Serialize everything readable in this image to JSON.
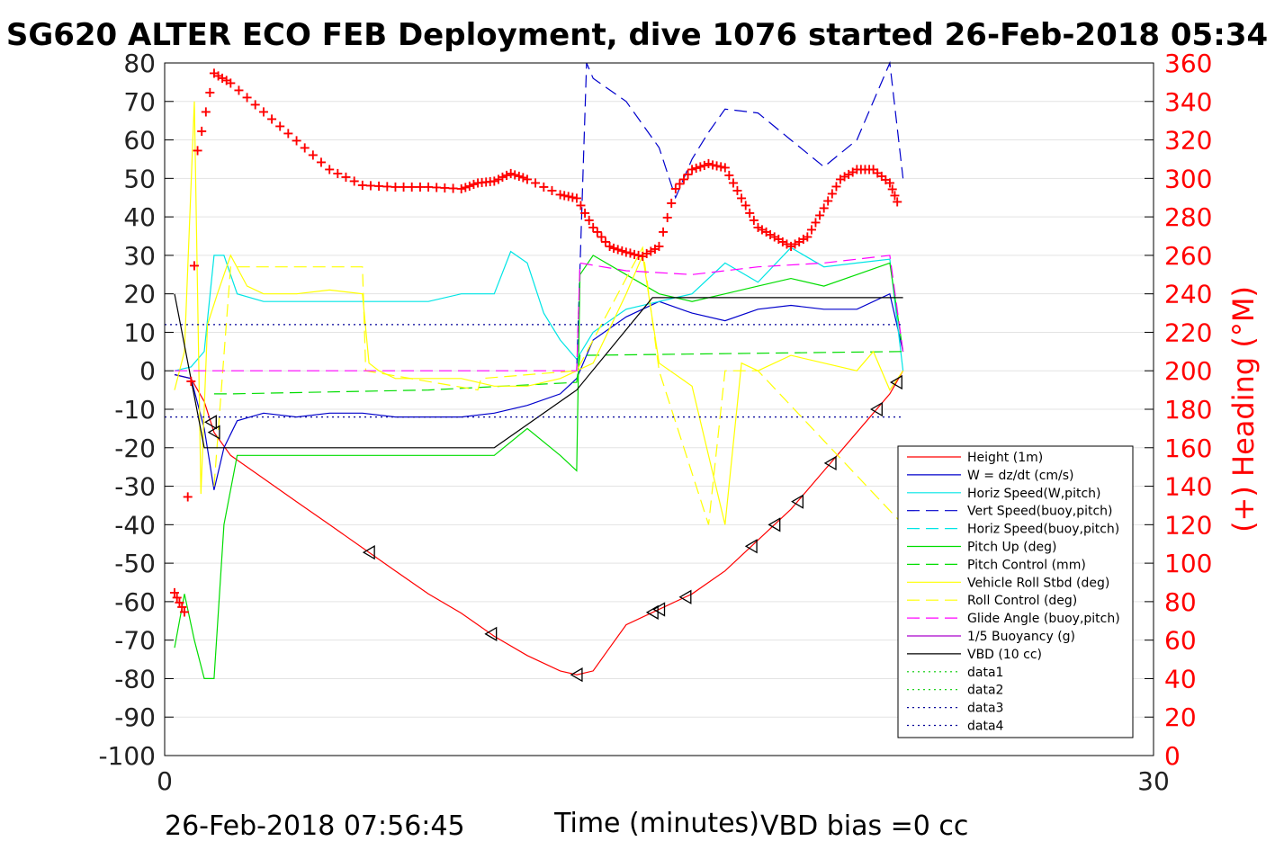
{
  "chart_data": {
    "type": "line",
    "title": "SG620 ALTER ECO FEB Deployment, dive 1076 started 26-Feb-2018 05:34",
    "xlabel": "Time (minutes)",
    "ylabel_right": "(+) Heading (°M)",
    "xlim": [
      0,
      30
    ],
    "ylim_left": [
      -100,
      80
    ],
    "ylim_right": [
      0,
      360
    ],
    "x_ticks": [
      0,
      30
    ],
    "y_ticks_left": [
      80,
      70,
      60,
      50,
      40,
      30,
      20,
      10,
      0,
      -10,
      -20,
      -30,
      -40,
      -50,
      -60,
      -70,
      -80,
      -90,
      -100
    ],
    "y_ticks_right": [
      360,
      340,
      320,
      300,
      280,
      260,
      240,
      220,
      200,
      180,
      160,
      140,
      120,
      100,
      80,
      60,
      40,
      20,
      0
    ],
    "footer_left": "26-Feb-2018 07:56:45",
    "footer_right": "VBD bias =0 cc",
    "colors": {
      "height": "#ff0000",
      "w": "#0000cc",
      "horiz": "#00e5e5",
      "pitch": "#00dd00",
      "roll": "#ffff00",
      "glide": "#ff00ff",
      "buoy": "#aa00cc",
      "vbd": "#000000",
      "heading": "#ff0000",
      "dotgreen": "#00cc00",
      "dotblue": "#000099"
    },
    "legend": [
      {
        "label": "Height (1m)",
        "color": "#ff0000",
        "style": "solid"
      },
      {
        "label": "W = dz/dt (cm/s)",
        "color": "#0000cc",
        "style": "solid"
      },
      {
        "label": "Horiz Speed(W,pitch)",
        "color": "#00e5e5",
        "style": "solid"
      },
      {
        "label": "Vert Speed(buoy,pitch)",
        "color": "#0000cc",
        "style": "dashed"
      },
      {
        "label": "Horiz Speed(buoy,pitch)",
        "color": "#00e5e5",
        "style": "dashed"
      },
      {
        "label": "Pitch Up (deg)",
        "color": "#00dd00",
        "style": "solid"
      },
      {
        "label": "Pitch Control (mm)",
        "color": "#00dd00",
        "style": "dashed"
      },
      {
        "label": "Vehicle Roll Stbd (deg)",
        "color": "#ffff00",
        "style": "solid"
      },
      {
        "label": "Roll Control (deg)",
        "color": "#ffff00",
        "style": "dashed"
      },
      {
        "label": "Glide Angle (buoy,pitch)",
        "color": "#ff00ff",
        "style": "dashed"
      },
      {
        "label": "1/5 Buoyancy (g)",
        "color": "#aa00cc",
        "style": "solid"
      },
      {
        "label": "VBD (10 cc)",
        "color": "#000000",
        "style": "solid"
      },
      {
        "label": "data1",
        "color": "#00cc00",
        "style": "dotted"
      },
      {
        "label": "data2",
        "color": "#00cc00",
        "style": "dotted"
      },
      {
        "label": "data3",
        "color": "#000099",
        "style": "dotted"
      },
      {
        "label": "data4",
        "color": "#000099",
        "style": "dotted"
      }
    ],
    "series": [
      {
        "name": "Height (1m)",
        "x": [
          0.3,
          0.8,
          1.2,
          1.5,
          2,
          3,
          4,
          5,
          6,
          7,
          8,
          9,
          10,
          11,
          12,
          12.5,
          13,
          13.5,
          14,
          15,
          16,
          17,
          18,
          19,
          20,
          21,
          22,
          22.4
        ],
        "y": [
          -1,
          -2,
          -8,
          -16,
          -22,
          -28,
          -34,
          -40,
          -46,
          -52,
          -58,
          -63,
          -69,
          -74,
          -78,
          -79,
          -78,
          -72,
          -66,
          -62,
          -58,
          -52,
          -44,
          -36,
          -26,
          -16,
          -6,
          0
        ]
      },
      {
        "name": "W = dz/dt (cm/s)",
        "x": [
          0.3,
          0.8,
          1.2,
          1.5,
          1.8,
          2.2,
          3,
          4,
          5,
          6,
          7,
          8,
          9,
          10,
          11,
          12,
          12.5,
          13,
          14,
          15,
          16,
          17,
          18,
          19,
          20,
          21,
          22,
          22.4
        ],
        "y": [
          -1,
          -2,
          -15,
          -31,
          -20,
          -13,
          -11,
          -12,
          -11,
          -11,
          -12,
          -12,
          -12,
          -11,
          -9,
          -6,
          -2,
          8,
          14,
          18,
          15,
          13,
          16,
          17,
          16,
          16,
          20,
          5
        ]
      },
      {
        "name": "Horiz Speed(W,pitch)",
        "x": [
          0.3,
          0.8,
          1.2,
          1.5,
          1.8,
          2.2,
          3,
          4,
          5,
          6,
          7,
          8,
          9,
          10,
          10.5,
          11,
          11.5,
          12,
          12.5,
          13,
          14,
          15,
          16,
          17,
          18,
          19,
          20,
          21,
          22,
          22.4
        ],
        "y": [
          0,
          1,
          5,
          30,
          30,
          20,
          18,
          18,
          18,
          18,
          18,
          18,
          20,
          20,
          31,
          28,
          15,
          8,
          3,
          10,
          16,
          18,
          20,
          28,
          23,
          32,
          27,
          28,
          29,
          0
        ]
      },
      {
        "name": "Vert Speed(buoy,pitch)",
        "x": [
          12.5,
          12.8,
          13,
          14,
          15,
          15.5,
          16,
          16.5,
          17,
          18,
          19,
          20,
          21,
          22,
          22.4
        ],
        "y": [
          0,
          80,
          76,
          70,
          58,
          45,
          55,
          62,
          68,
          67,
          60,
          53,
          60,
          80,
          50
        ]
      },
      {
        "name": "Pitch Up (deg)",
        "x": [
          0.3,
          0.6,
          0.9,
          1.2,
          1.5,
          1.8,
          2.2,
          3,
          4,
          5,
          6,
          7,
          8,
          9,
          10,
          11,
          12,
          12.5,
          12.6,
          13,
          14,
          15,
          16,
          17,
          18,
          19,
          20,
          21,
          22,
          22.4
        ],
        "y": [
          -72,
          -58,
          -70,
          -80,
          -80,
          -40,
          -22,
          -22,
          -22,
          -22,
          -22,
          -22,
          -22,
          -22,
          -22,
          -15,
          -22,
          -26,
          25,
          30,
          25,
          20,
          18,
          20,
          22,
          24,
          22,
          25,
          28,
          5
        ]
      },
      {
        "name": "Pitch Control (mm)",
        "x": [
          1.5,
          2,
          8,
          12.5,
          12.6,
          22.4
        ],
        "y": [
          -6,
          -6,
          -5,
          -3,
          4,
          5
        ]
      },
      {
        "name": "Vehicle Roll Stbd (deg)",
        "x": [
          0.3,
          0.6,
          0.9,
          1.1,
          1.3,
          1.6,
          2,
          2.5,
          3,
          4,
          5,
          6,
          6.2,
          6.5,
          7,
          8,
          9,
          10,
          11,
          12,
          13,
          14,
          14.5,
          15,
          16,
          17,
          17.5,
          18,
          19,
          20,
          21,
          21.5,
          22,
          22.4
        ],
        "y": [
          -5,
          5,
          70,
          -32,
          12,
          20,
          30,
          22,
          20,
          20,
          21,
          20,
          2,
          0,
          -2,
          -2,
          -2,
          -4,
          -4,
          -2,
          2,
          20,
          30,
          2,
          -4,
          -40,
          2,
          0,
          4,
          2,
          0,
          5,
          -5,
          0
        ]
      },
      {
        "name": "Roll Control (deg)",
        "x": [
          1.5,
          2,
          6,
          6.1,
          9.5,
          9.6,
          12.5,
          14.5,
          15,
          16.5,
          17,
          18,
          22.4
        ],
        "y": [
          -30,
          27,
          27,
          0,
          -5,
          -2,
          0,
          32,
          0,
          -40,
          0,
          0,
          -40
        ]
      },
      {
        "name": "Glide Angle (buoy,pitch)",
        "x": [
          0.3,
          12.5,
          12.6,
          14,
          16,
          18,
          20,
          22,
          22.4
        ],
        "y": [
          0,
          0,
          28,
          26,
          25,
          27,
          28,
          30,
          5
        ]
      },
      {
        "name": "VBD (10 cc)",
        "x": [
          0.3,
          1.2,
          4,
          8,
          10,
          12.5,
          14.8,
          16,
          22.4
        ],
        "y": [
          20,
          -20,
          -20,
          -20,
          -20,
          -5,
          19,
          19,
          19
        ]
      },
      {
        "name": "data3",
        "x": [
          0,
          22.4
        ],
        "y": [
          12,
          12
        ]
      },
      {
        "name": "data4",
        "x": [
          0,
          22.4
        ],
        "y": [
          -12,
          -12
        ]
      },
      {
        "name": "Heading",
        "axis": "right",
        "x": [
          0.3,
          0.6,
          1.0,
          1.5,
          2,
          3,
          4,
          5,
          6,
          7,
          8,
          9,
          9.5,
          10,
          10.5,
          11,
          12,
          12.5,
          13,
          13.5,
          14,
          14.5,
          15,
          15.5,
          16,
          16.5,
          17,
          17.5,
          18,
          18.5,
          19,
          19.5,
          20,
          20.5,
          21,
          21.5,
          22,
          22.3
        ],
        "y": [
          85,
          75,
          315,
          355,
          350,
          335,
          320,
          305,
          297,
          296,
          296,
          295,
          298,
          299,
          303,
          300,
          292,
          290,
          275,
          265,
          262,
          260,
          265,
          295,
          305,
          308,
          306,
          290,
          275,
          270,
          265,
          270,
          285,
          300,
          305,
          305,
          298,
          285
        ]
      }
    ]
  }
}
